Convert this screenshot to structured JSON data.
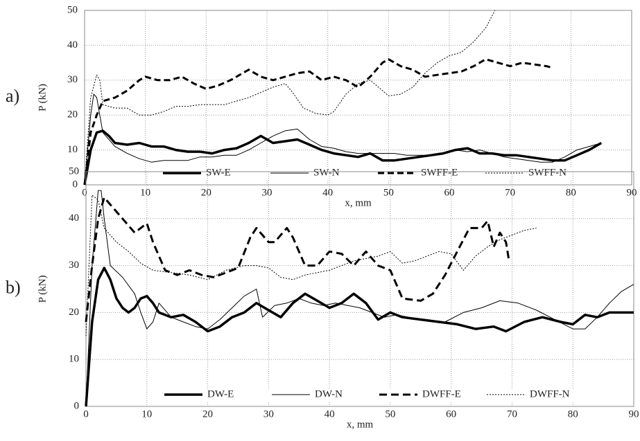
{
  "chart_data": [
    {
      "type": "line",
      "panel_label": "a)",
      "ylabel": "P (kN)",
      "xlabel": "x, mm",
      "xlim": [
        0,
        90
      ],
      "xticks": [
        0,
        10,
        20,
        30,
        40,
        50,
        60,
        70,
        80,
        90
      ],
      "ylim": [
        0,
        50
      ],
      "yticks": [
        0,
        10,
        20,
        30,
        40,
        50
      ],
      "grid": true,
      "legend": "bottom",
      "series": [
        {
          "name": "SW-E",
          "color": "#000000",
          "line_width": 3.5,
          "dash": "none",
          "x": [
            0,
            1,
            2,
            3,
            4,
            5,
            7,
            9,
            11,
            13,
            15,
            17,
            19,
            21,
            23,
            25,
            27,
            29,
            31,
            33,
            35,
            37,
            39,
            41,
            43,
            45,
            47,
            49,
            51,
            53,
            55,
            57,
            59,
            61,
            63,
            65,
            67,
            69,
            71,
            73,
            75,
            77,
            79,
            81,
            83,
            85
          ],
          "values": [
            0,
            10,
            15,
            15.5,
            14,
            12,
            11.5,
            12,
            11,
            11,
            10,
            9.5,
            9.5,
            9,
            10,
            10.5,
            12,
            14,
            12,
            12.5,
            13,
            11.5,
            10,
            9,
            8.5,
            8,
            9,
            7,
            7,
            7.5,
            8,
            8.5,
            9,
            10,
            10.5,
            9,
            9,
            8.5,
            8.5,
            8,
            7.5,
            7,
            7,
            8.5,
            10,
            12
          ]
        },
        {
          "name": "SW-N",
          "color": "#000000",
          "line_width": 1,
          "dash": "none",
          "x": [
            0,
            1,
            1.5,
            2,
            3,
            5,
            7,
            9,
            11,
            13,
            15,
            17,
            19,
            21,
            23,
            25,
            27,
            29,
            31,
            33,
            35,
            37,
            39,
            41,
            43,
            45,
            47,
            49,
            51,
            53,
            55,
            57,
            59,
            61,
            63,
            65,
            67,
            69,
            71,
            73,
            75,
            77,
            79,
            81,
            83,
            85
          ],
          "values": [
            0,
            20,
            26,
            25,
            15,
            11,
            9,
            7.5,
            6.5,
            7,
            7,
            7,
            8,
            8,
            8.5,
            8.5,
            10,
            12,
            14,
            15.5,
            16,
            13,
            11,
            10.5,
            9.5,
            9,
            9,
            9,
            9,
            8.5,
            8.5,
            8.5,
            9,
            10,
            9.5,
            10,
            9,
            8,
            7.5,
            7,
            6.5,
            6.5,
            8,
            10,
            11,
            12
          ]
        },
        {
          "name": "SWFF-E",
          "color": "#000000",
          "line_width": 3,
          "dash": "9,5",
          "x": [
            0,
            1,
            2,
            3,
            5,
            7,
            9,
            10,
            12,
            14,
            16,
            18,
            20,
            22,
            24,
            26,
            27,
            29,
            31,
            33,
            35,
            37,
            39,
            41,
            43,
            45,
            47,
            49,
            50,
            52,
            54,
            56,
            58,
            60,
            62,
            64,
            66,
            68,
            70,
            72,
            74,
            76,
            77
          ],
          "values": [
            0,
            15,
            20,
            24,
            25,
            27,
            30,
            31,
            30,
            30,
            31,
            29,
            27.5,
            28.5,
            30,
            32,
            33,
            31,
            30,
            31,
            32,
            32.5,
            30,
            31,
            30,
            28,
            31,
            35,
            36,
            34,
            33,
            31,
            31.5,
            32,
            32.5,
            34,
            36,
            35,
            34,
            35,
            34.5,
            34,
            33.5
          ]
        },
        {
          "name": "SWFF-N",
          "color": "#000000",
          "line_width": 1,
          "dash": "2,2",
          "x": [
            0,
            1,
            2,
            2.5,
            3,
            5,
            7,
            9,
            11,
            13,
            15,
            17,
            19,
            21,
            23,
            25,
            27,
            29,
            31,
            33,
            34,
            36,
            38,
            40,
            41,
            43,
            45,
            47,
            49,
            50,
            52,
            54,
            56,
            58,
            60,
            62,
            64,
            66,
            67.5
          ],
          "values": [
            0,
            25,
            31.5,
            30,
            23,
            22,
            22,
            20,
            20,
            21,
            22.5,
            22.5,
            23,
            23,
            23,
            24,
            25,
            26.5,
            28,
            29,
            27,
            22,
            20.5,
            20,
            21,
            26,
            29,
            30,
            27,
            25.5,
            26,
            28,
            32,
            35,
            37,
            38,
            41,
            45,
            50
          ]
        }
      ]
    },
    {
      "type": "line",
      "panel_label": "b)",
      "ylabel": "P (kN)",
      "xlabel": "x, mm",
      "xlim": [
        0,
        90
      ],
      "xticks": [
        0,
        10,
        20,
        30,
        40,
        50,
        60,
        70,
        80,
        90
      ],
      "ylim": [
        0,
        50
      ],
      "yticks": [
        0,
        10,
        20,
        30,
        40,
        50
      ],
      "grid": true,
      "legend": "bottom",
      "series": [
        {
          "name": "DW-E",
          "color": "#000000",
          "line_width": 3.5,
          "dash": "none",
          "x": [
            0,
            1,
            2,
            3,
            4,
            5,
            6,
            7,
            8,
            9,
            10,
            11,
            12,
            14,
            16,
            18,
            20,
            22,
            24,
            26,
            28,
            30,
            32,
            34,
            36,
            38,
            40,
            42,
            44,
            46,
            48,
            50,
            52,
            55,
            58,
            61,
            64,
            67,
            69,
            72,
            75,
            78,
            80,
            82,
            84,
            86,
            88,
            90
          ],
          "values": [
            0,
            18,
            27,
            29.5,
            27,
            23,
            21,
            20,
            21,
            23,
            23.5,
            22,
            20,
            19,
            19.5,
            18,
            16,
            17,
            19,
            20,
            22,
            20.5,
            19,
            22,
            24,
            22.5,
            21,
            22,
            24,
            22,
            18.5,
            20,
            19,
            18.5,
            18,
            17.5,
            16.5,
            17,
            16,
            18,
            19,
            18,
            17.5,
            19.5,
            19,
            20,
            20,
            20
          ]
        },
        {
          "name": "DW-N",
          "color": "#000000",
          "line_width": 1,
          "dash": "none",
          "x": [
            0,
            1,
            2,
            2.5,
            3,
            4,
            6,
            8,
            9,
            10,
            11,
            12,
            14,
            16,
            18,
            20,
            22,
            24,
            26,
            28,
            29,
            31,
            33,
            35,
            37,
            39,
            41,
            43,
            45,
            47,
            49,
            51,
            53,
            56,
            59,
            62,
            65,
            68,
            71,
            74,
            77,
            80,
            82,
            84,
            86,
            88,
            90
          ],
          "values": [
            0,
            30,
            46,
            46,
            40,
            30,
            27.5,
            24,
            20,
            16.5,
            18,
            22,
            19,
            18,
            17,
            16.5,
            18.5,
            21,
            23.5,
            25,
            19,
            21.5,
            22,
            23,
            22,
            21.5,
            22,
            21.5,
            21,
            20,
            19,
            19.5,
            19,
            18.5,
            18,
            20,
            21,
            22.5,
            22,
            20.5,
            18.5,
            16.5,
            16.5,
            19,
            22,
            24.5,
            26
          ]
        },
        {
          "name": "DWFF-E",
          "color": "#000000",
          "line_width": 3,
          "dash": "11,6",
          "x": [
            0,
            1,
            2,
            3,
            4,
            6,
            8,
            10,
            11,
            13,
            15,
            17,
            19,
            21,
            23,
            25,
            27,
            28,
            30,
            31,
            33,
            34,
            36,
            38,
            40,
            42,
            44,
            46,
            48,
            50,
            52,
            55,
            57,
            59,
            61,
            63,
            65,
            66,
            67,
            68,
            69,
            69.5
          ],
          "values": [
            18,
            30,
            40,
            44.5,
            43,
            40,
            37,
            39,
            35,
            29,
            28,
            29,
            28,
            27.5,
            28.5,
            29.5,
            36,
            38,
            35,
            35,
            38,
            36,
            30,
            30,
            33,
            32.5,
            30,
            33,
            30,
            29,
            23,
            22.5,
            24,
            28,
            33,
            38,
            38,
            39.5,
            34,
            37,
            35,
            31
          ]
        },
        {
          "name": "DWFF-N",
          "color": "#000000",
          "line_width": 1,
          "dash": "2,2",
          "x": [
            0,
            1,
            2,
            3,
            5,
            7,
            9,
            11,
            14,
            17,
            20,
            23,
            26,
            28,
            30,
            32,
            34,
            36,
            38,
            40,
            42,
            44,
            46,
            48,
            50,
            52,
            54,
            56,
            58,
            60,
            62,
            64,
            66,
            68,
            70,
            72,
            74
          ],
          "values": [
            15,
            45,
            44,
            38,
            35,
            33,
            30.5,
            29,
            28.5,
            28,
            27,
            29,
            30,
            30,
            29.5,
            27.5,
            27,
            28,
            28.5,
            29,
            30,
            31,
            31.5,
            32,
            33,
            30.5,
            31,
            32,
            33,
            32.5,
            29,
            32,
            34,
            35.5,
            36.5,
            37.5,
            38
          ]
        }
      ]
    }
  ]
}
